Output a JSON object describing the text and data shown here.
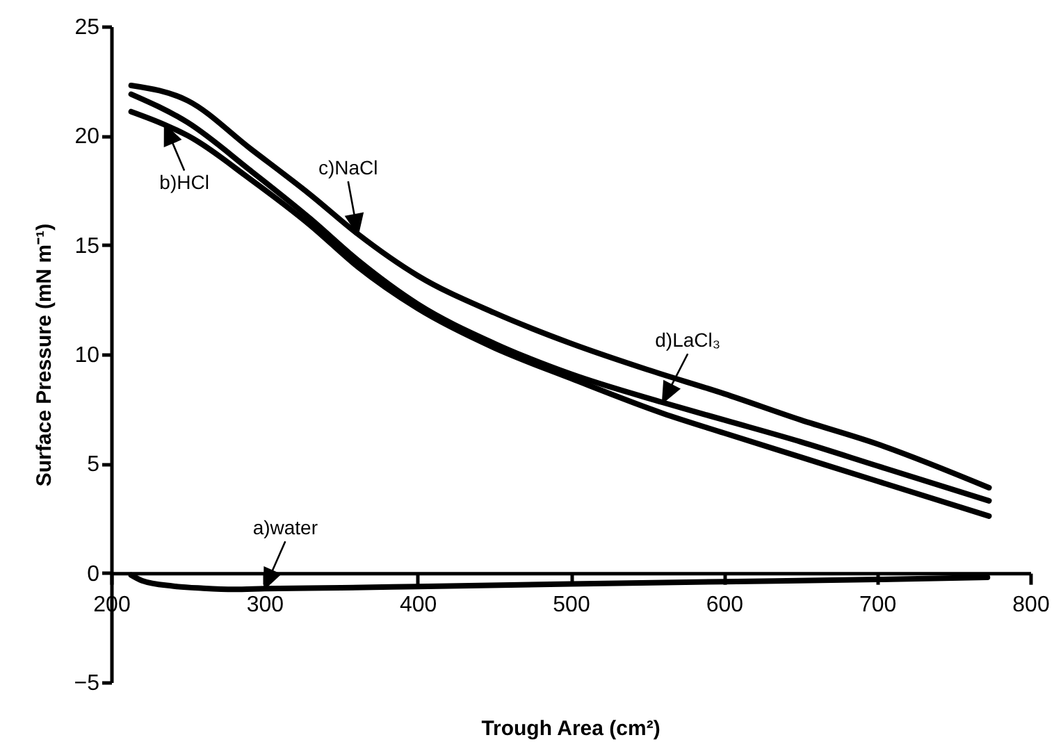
{
  "chart_data": {
    "type": "line",
    "xlabel": "Trough Area (cm²)",
    "ylabel": "Surface Pressure (mN m⁻¹)",
    "xlim": [
      200,
      800
    ],
    "xticks": [
      200,
      300,
      400,
      500,
      600,
      700,
      800
    ],
    "ylim": [
      -5,
      25
    ],
    "yticks": [
      -5,
      0,
      5,
      10,
      15,
      20,
      25
    ],
    "grid": false,
    "line_style": "solid",
    "series": [
      {
        "color": "#000000",
        "x": [
          213,
          220,
          240,
          260,
          280,
          300,
          350,
          400,
          500,
          600,
          700,
          772
        ],
        "values": [
          -0.1,
          -0.35,
          -0.6,
          -0.7,
          -0.75,
          -0.72,
          -0.68,
          -0.62,
          -0.5,
          -0.4,
          -0.3,
          -0.2
        ]
      },
      {
        "color": "#000000",
        "x": [
          213,
          235,
          250,
          291,
          330,
          361,
          400,
          450,
          500,
          560,
          600,
          650,
          700,
          773
        ],
        "values": [
          21.1,
          20.5,
          20.0,
          18.0,
          15.9,
          14.0,
          12.1,
          10.3,
          8.9,
          7.3,
          6.4,
          5.3,
          4.2,
          2.6
        ]
      },
      {
        "color": "#000000",
        "x": [
          213,
          250,
          291,
          330,
          361,
          400,
          450,
          500,
          550,
          600,
          650,
          700,
          773
        ],
        "values": [
          22.3,
          21.6,
          19.4,
          17.3,
          15.5,
          13.6,
          11.9,
          10.5,
          9.3,
          8.2,
          7.0,
          5.9,
          3.9
        ]
      },
      {
        "color": "#000000",
        "x": [
          213,
          250,
          291,
          330,
          361,
          400,
          450,
          500,
          560,
          600,
          650,
          700,
          773
        ],
        "values": [
          21.9,
          20.6,
          18.4,
          16.2,
          14.3,
          12.3,
          10.5,
          9.1,
          7.8,
          7.0,
          6.0,
          4.9,
          3.3
        ]
      }
    ],
    "annotations": [
      {
        "text": "a)water",
        "x": 300,
        "y": -0.72
      },
      {
        "text": "b)HCl",
        "x": 235,
        "y": 20.5
      },
      {
        "text": "c)NaCl",
        "x": 361,
        "y": 15.5
      },
      {
        "text": "d)LaCl₃",
        "x": 560,
        "y": 7.8
      }
    ]
  }
}
